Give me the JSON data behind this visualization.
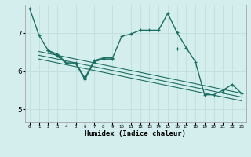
{
  "title": "",
  "xlabel": "Humidex (Indice chaleur)",
  "bg_color": "#d4eeee",
  "grid_color": "#c0dede",
  "line_color": "#1a6e62",
  "xlim": [
    -0.5,
    23.5
  ],
  "ylim": [
    4.65,
    7.75
  ],
  "yticks": [
    5,
    6,
    7
  ],
  "xtick_labels": [
    "0",
    "1",
    "2",
    "3",
    "4",
    "5",
    "6",
    "7",
    "8",
    "9",
    "10",
    "11",
    "12",
    "13",
    "14",
    "15",
    "16",
    "17",
    "18",
    "19",
    "20",
    "21",
    "22",
    "23"
  ],
  "line1": [
    7.65,
    6.95,
    6.55,
    6.45,
    6.22,
    6.22,
    5.82,
    6.28,
    6.35,
    6.35,
    6.92,
    6.98,
    7.08,
    7.08,
    7.08,
    7.52,
    7.02,
    6.62,
    6.25,
    5.38,
    5.38,
    5.5,
    5.65,
    5.42
  ],
  "line2": [
    null,
    null,
    6.55,
    6.4,
    6.2,
    6.2,
    5.78,
    6.25,
    6.32,
    6.32,
    null,
    null,
    null,
    null,
    null,
    null,
    6.6,
    null,
    null,
    null,
    null,
    5.45,
    null,
    null
  ],
  "trend_lines": [
    [
      [
        1,
        23
      ],
      [
        6.52,
        5.42
      ]
    ],
    [
      [
        1,
        23
      ],
      [
        6.42,
        5.32
      ]
    ],
    [
      [
        1,
        23
      ],
      [
        6.32,
        5.22
      ]
    ]
  ]
}
